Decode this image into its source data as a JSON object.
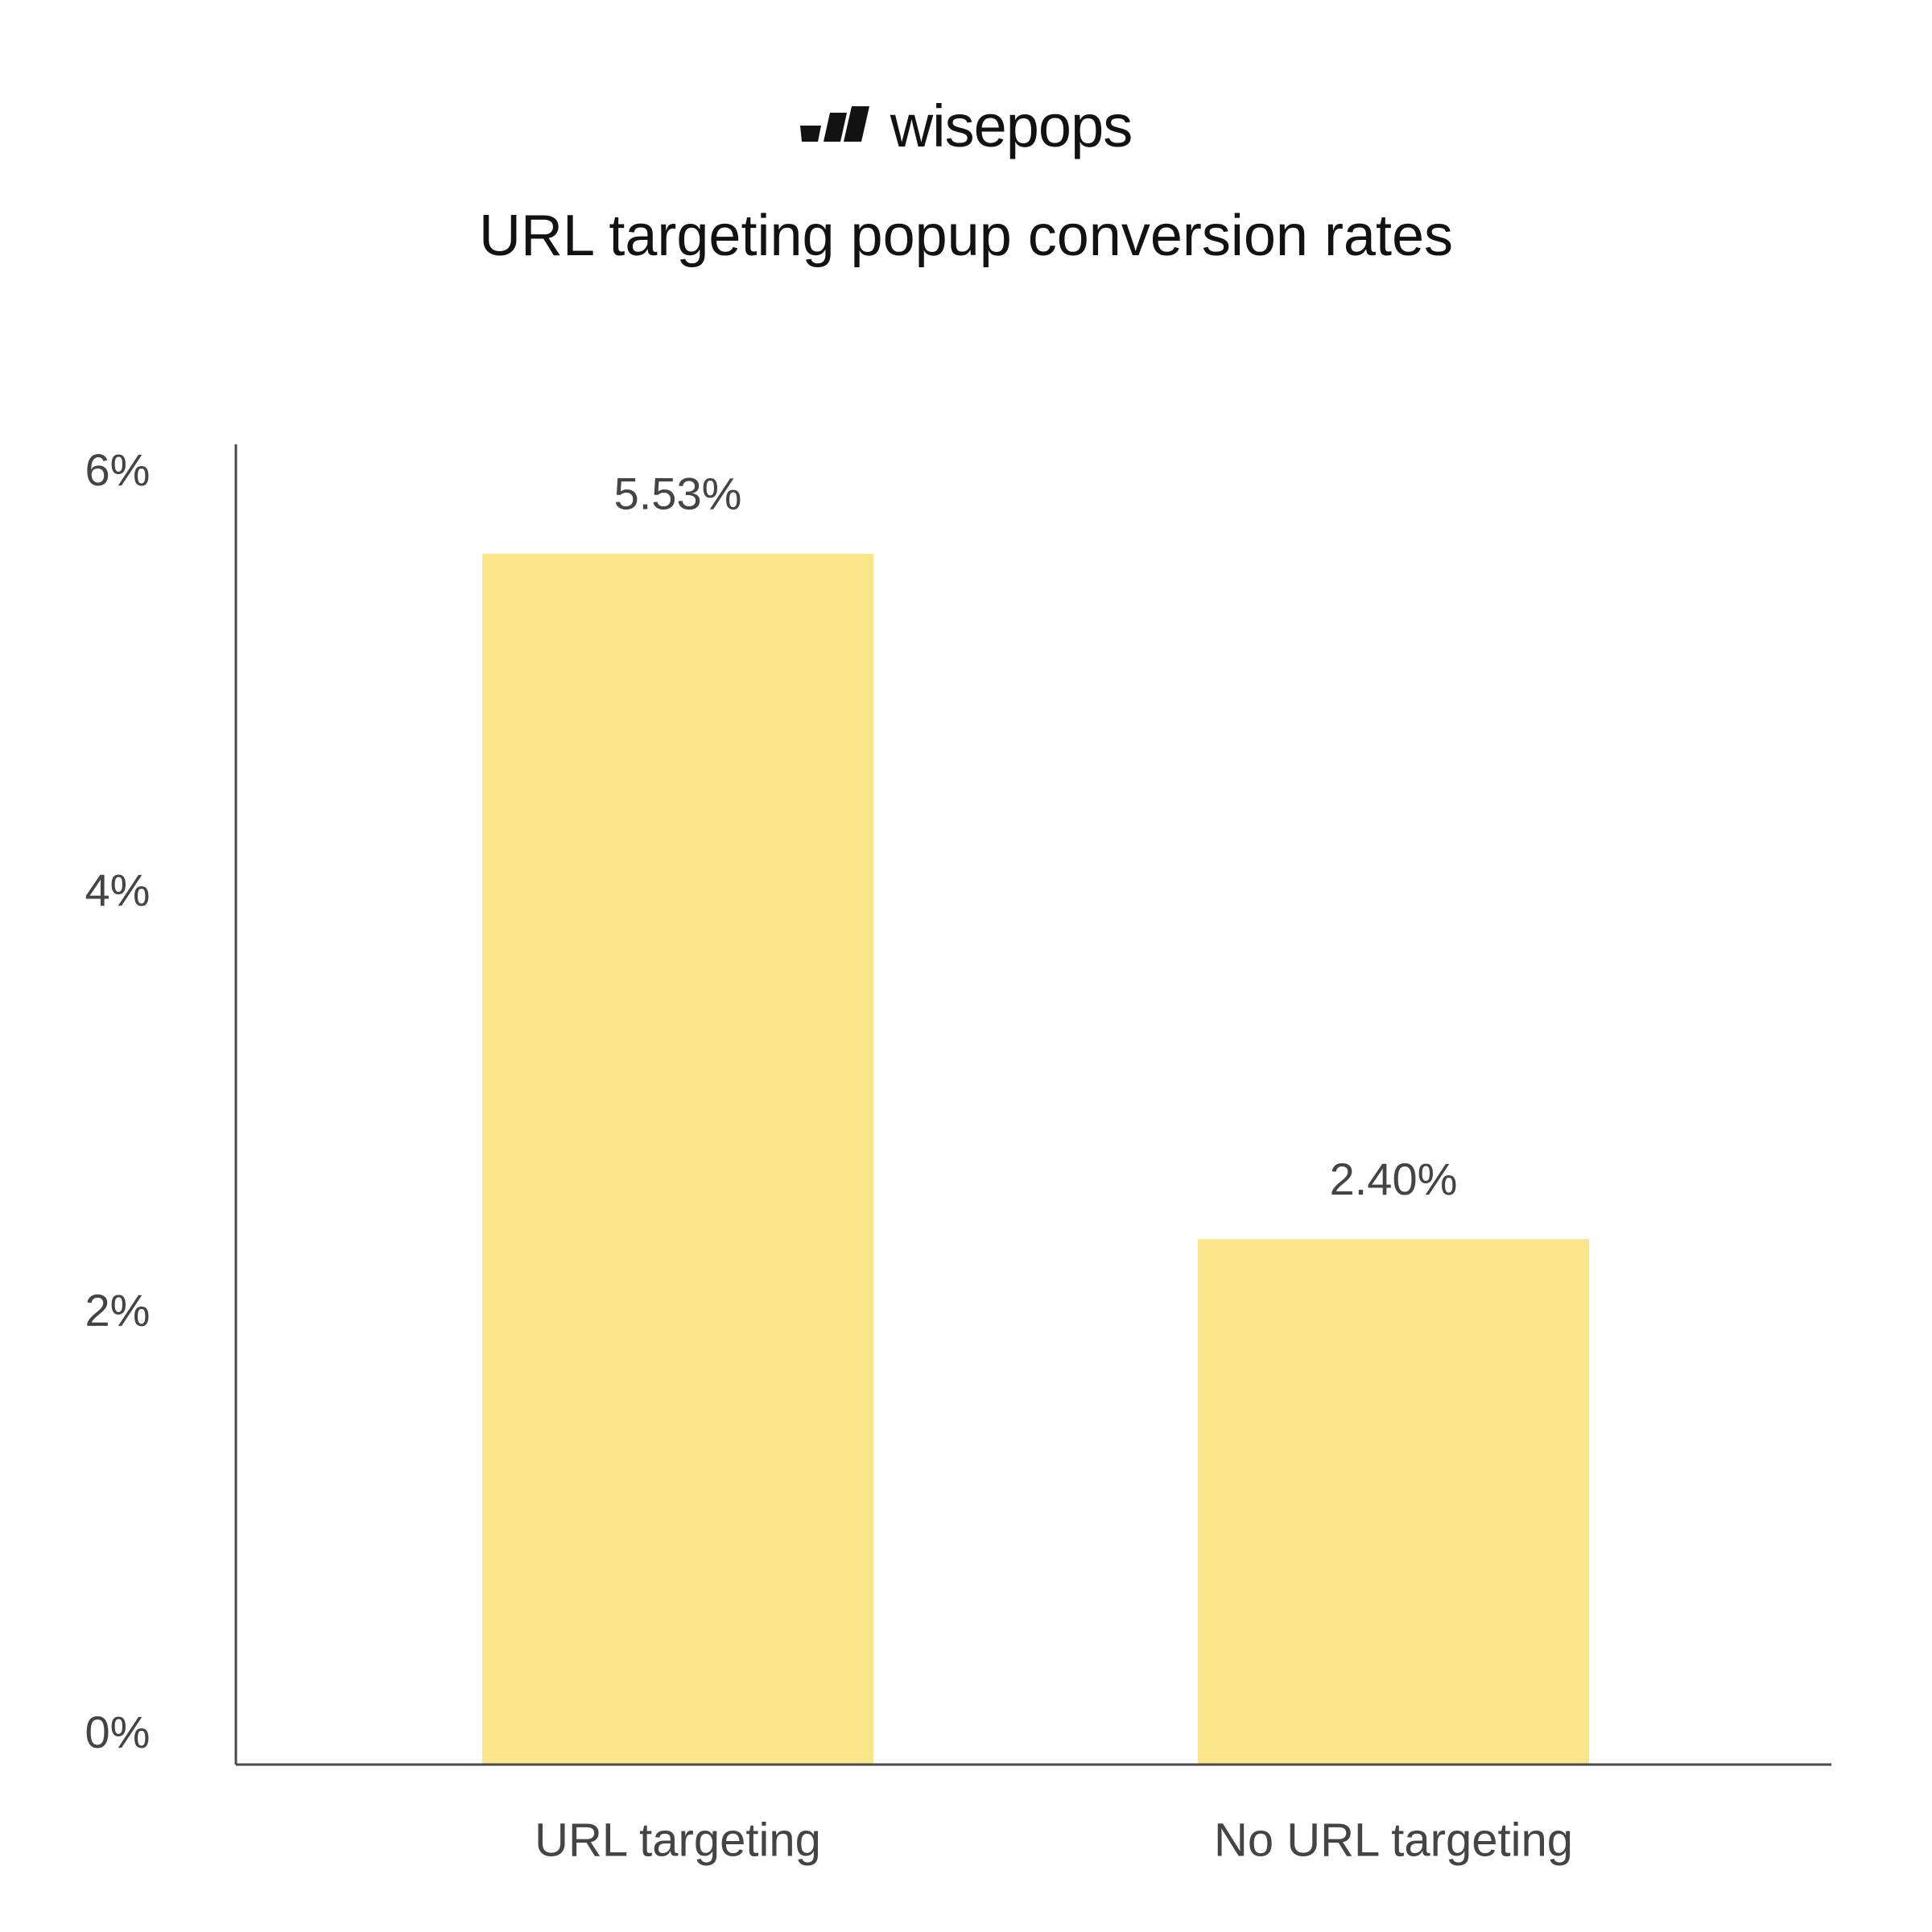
{
  "brand": {
    "name": "wisepops",
    "logo_icon": "wisepops-logo-mark-icon"
  },
  "colors": {
    "bar": "#fce68a",
    "axis": "#4a4a4a",
    "text": "#444444",
    "title": "#121212"
  },
  "chart_data": {
    "type": "bar",
    "title": "URL targeting popup conversion rates",
    "xlabel": "",
    "ylabel": "",
    "categories": [
      "URL targeting",
      "No URL targeting"
    ],
    "values": [
      5.53,
      2.4
    ],
    "data_labels": [
      "5.53%",
      "2.40%"
    ],
    "ylim": [
      0,
      6
    ],
    "yticks": [
      0,
      2,
      4,
      6
    ],
    "ytick_labels": [
      "0%",
      "2%",
      "4%",
      "6%"
    ],
    "grid": false,
    "legend": "none"
  }
}
